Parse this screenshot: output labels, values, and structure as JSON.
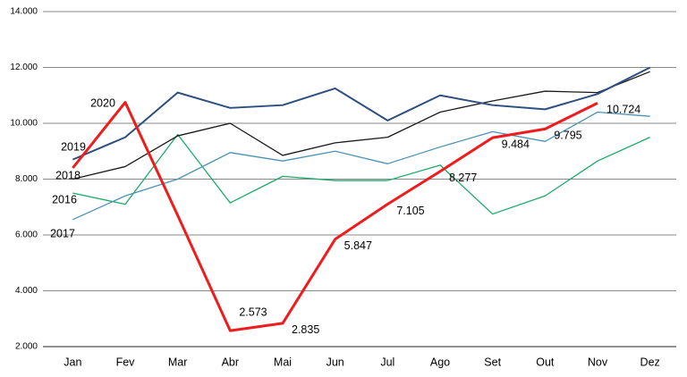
{
  "chart_data": {
    "type": "line",
    "categories": [
      "Jan",
      "Fev",
      "Mar",
      "Abr",
      "Mai",
      "Jun",
      "Jul",
      "Ago",
      "Set",
      "Out",
      "Nov",
      "Dez"
    ],
    "ylim": [
      2000,
      14000
    ],
    "yticks": [
      {
        "value": 2000,
        "label": "2.000"
      },
      {
        "value": 4000,
        "label": "4.000"
      },
      {
        "value": 6000,
        "label": "6.000"
      },
      {
        "value": 8000,
        "label": "8.000"
      },
      {
        "value": 10000,
        "label": "10.000"
      },
      {
        "value": 12000,
        "label": "12.000"
      },
      {
        "value": 14000,
        "label": "14.000"
      }
    ],
    "grid": true,
    "series": [
      {
        "name": "2016",
        "color": "#1aaa6a",
        "values": [
          7500,
          7100,
          9600,
          7150,
          8100,
          7950,
          7950,
          8500,
          6750,
          7400,
          8650,
          9500
        ]
      },
      {
        "name": "2017",
        "color": "#4a93b5",
        "values": [
          6550,
          7400,
          8000,
          8950,
          8650,
          9000,
          8550,
          9150,
          9700,
          9350,
          10400,
          10250
        ]
      },
      {
        "name": "2018",
        "color": "#1a1a1a",
        "values": [
          8000,
          8450,
          9550,
          10000,
          8850,
          9300,
          9500,
          10400,
          10800,
          11150,
          11100,
          11850
        ]
      },
      {
        "name": "2019",
        "color": "#2d4f80",
        "values": [
          8700,
          9500,
          11100,
          10550,
          10650,
          11250,
          10100,
          11000,
          10650,
          10500,
          11050,
          12000
        ]
      },
      {
        "name": "2020",
        "color": "#ee1c1c",
        "values": [
          8400,
          10750,
          6700,
          2573,
          2835,
          5847,
          7105,
          8277,
          9484,
          9795,
          10724,
          null
        ],
        "value_labels": [
          null,
          null,
          null,
          "2.573",
          "2.835",
          "5.847",
          "7.105",
          "8.277",
          "9.484",
          "9.795",
          "10.724",
          null
        ]
      }
    ]
  }
}
